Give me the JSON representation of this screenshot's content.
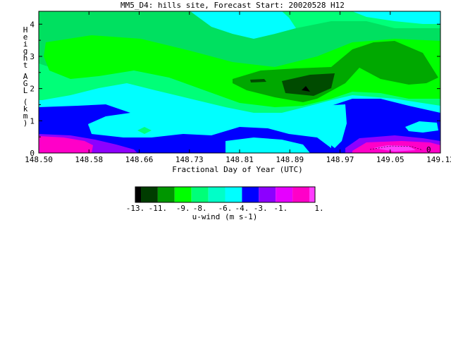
{
  "chart_data": {
    "type": "heatmap",
    "title": "MM5_D4: hills site,  Forecast Start: 20020528 H12",
    "xlabel": "Fractional Day of Year (UTC)",
    "ylabel": "Height AGL (km)",
    "xlim": [
      148.5,
      149.12
    ],
    "ylim": [
      0,
      4.4
    ],
    "x_ticks": [
      "148.50",
      "148.58",
      "148.66",
      "148.73",
      "148.81",
      "148.89",
      "148.97",
      "149.05",
      "149.12"
    ],
    "y_ticks": [
      "0",
      "1",
      "2",
      "3",
      "4"
    ],
    "colorbar": {
      "label": "u-wind (m s-1)",
      "tick_labels": [
        "-13.",
        "-11.",
        "-9.",
        "-8.",
        "-6.",
        "-4.",
        "-3.",
        "-1.",
        "1."
      ],
      "colors": [
        "#000000",
        "#003c00",
        "#009600",
        "#00ff00",
        "#00ff78",
        "#00ffc8",
        "#00ffff",
        "#0000ff",
        "#8c00ff",
        "#e600ff",
        "#ff00c8",
        "#ff3cff"
      ]
    },
    "annotations": [
      "0"
    ]
  }
}
